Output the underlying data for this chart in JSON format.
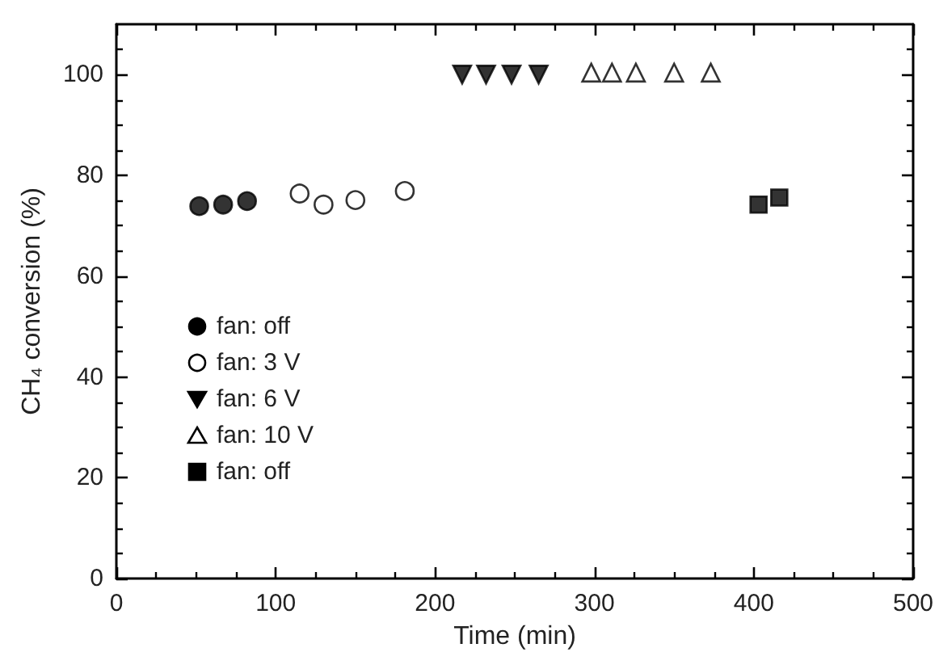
{
  "chart_data": {
    "type": "scatter",
    "xlabel": "Time (min)",
    "ylabel": "CH₄ conversion (%)",
    "xlim": [
      0,
      500
    ],
    "xticks": [
      0,
      100,
      200,
      300,
      400,
      500
    ],
    "ylim": [
      0,
      110
    ],
    "yticks": [
      0,
      20,
      40,
      60,
      80,
      100
    ],
    "grid": false,
    "legend": "left",
    "series": [
      {
        "name": "fan: off",
        "color": "#000000",
        "marker": "circle",
        "x": [
          52,
          67,
          82
        ],
        "values": [
          73.9,
          74.2,
          74.9
        ]
      },
      {
        "name": "fan: 3 V",
        "color": "#ffffff",
        "marker": "circle",
        "x": [
          115,
          130,
          150,
          181
        ],
        "values": [
          76.4,
          74.2,
          75.1,
          76.9
        ]
      },
      {
        "name": "fan: 6 V",
        "color": "#000000",
        "marker": "triangle-down",
        "x": [
          217,
          232,
          248,
          265
        ],
        "values": [
          100,
          100,
          100,
          100
        ]
      },
      {
        "name": "fan: 10 V",
        "color": "#ffffff",
        "marker": "triangle",
        "x": [
          298,
          311,
          326,
          350,
          373
        ],
        "values": [
          100.4,
          100.4,
          100.4,
          100.4,
          100.4
        ]
      },
      {
        "name": "fan: off",
        "color": "#000000",
        "marker": "square",
        "x": [
          403,
          416
        ],
        "values": [
          74.2,
          75.6
        ]
      }
    ]
  }
}
